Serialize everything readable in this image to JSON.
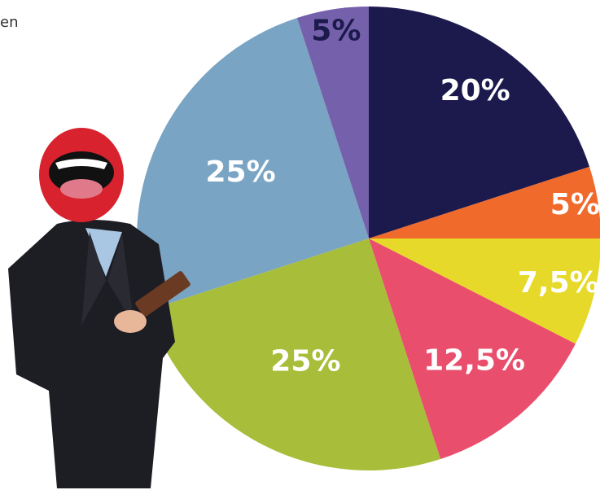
{
  "chart_data": {
    "type": "pie",
    "annotation": "en",
    "values": [
      20,
      5,
      7.5,
      12.5,
      25,
      25,
      5
    ],
    "value_labels": [
      "20%",
      "5%",
      "7,5%",
      "12,5%",
      "25%",
      "25%",
      "5%"
    ],
    "colors": [
      "#1c1a4d",
      "#ef6a2b",
      "#e6d92a",
      "#e94f6d",
      "#a8bd39",
      "#7aa4c3",
      "#7561ab"
    ],
    "label_colors": [
      "#ffffff",
      "#ffffff",
      "#ffffff",
      "#ffffff",
      "#ffffff",
      "#ffffff",
      "#1c1a4d"
    ]
  }
}
